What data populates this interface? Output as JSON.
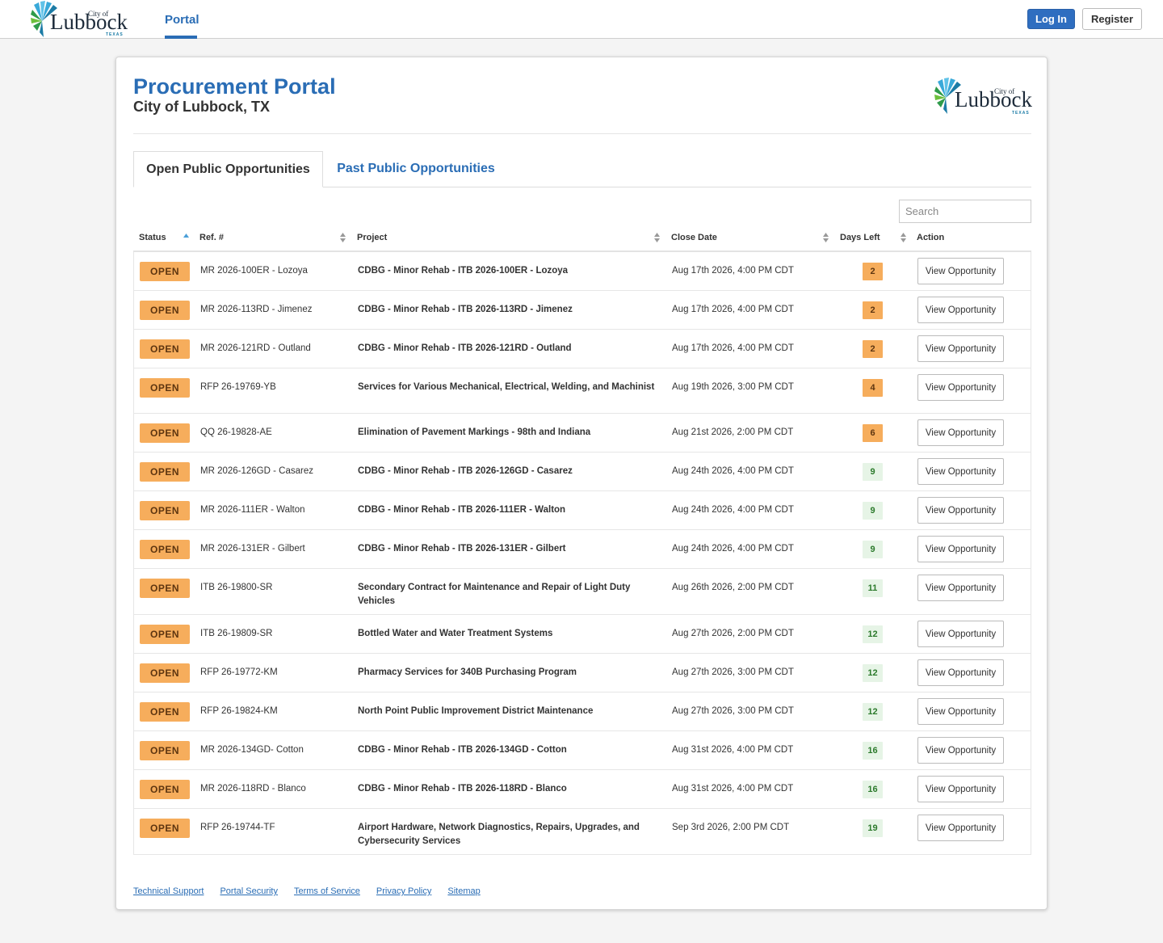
{
  "nav": {
    "logo": {
      "small": "City of",
      "word": "Lubbock",
      "state": "TEXAS"
    },
    "portal_link": "Portal",
    "login_label": "Log In",
    "register_label": "Register"
  },
  "header": {
    "title": "Procurement Portal",
    "subtitle": "City of Lubbock, TX"
  },
  "tabs": [
    {
      "label": "Open Public Opportunities",
      "active": true
    },
    {
      "label": "Past Public Opportunities",
      "active": false
    }
  ],
  "search": {
    "placeholder": "Search",
    "value": ""
  },
  "table": {
    "columns": [
      "Status",
      "Ref. #",
      "Project",
      "Close Date",
      "Days Left",
      "Action"
    ],
    "rows": [
      {
        "status": "OPEN",
        "ref": "MR 2026-100ER - Lozoya",
        "project": "CDBG - Minor Rehab - ITB 2026-100ER - Lozoya",
        "close_date": "Aug 17th 2026, 4:00 PM CDT",
        "days_left": "2",
        "action": "View Opportunity"
      },
      {
        "status": "OPEN",
        "ref": "MR 2026-113RD - Jimenez",
        "project": "CDBG - Minor Rehab - ITB 2026-113RD - Jimenez",
        "close_date": "Aug 17th 2026, 4:00 PM CDT",
        "days_left": "2",
        "action": "View Opportunity"
      },
      {
        "status": "OPEN",
        "ref": "MR 2026-121RD - Outland",
        "project": "CDBG - Minor Rehab - ITB 2026-121RD - Outland",
        "close_date": "Aug 17th 2026, 4:00 PM CDT",
        "days_left": "2",
        "action": "View Opportunity"
      },
      {
        "status": "OPEN",
        "ref": "RFP 26-19769-YB",
        "project": "Services for Various Mechanical, Electrical, Welding, and Machinist",
        "close_date": "Aug 19th 2026, 3:00 PM CDT",
        "days_left": "4",
        "action": "View Opportunity"
      },
      {
        "status": "OPEN",
        "ref": "QQ 26-19828-AE",
        "project": "Elimination of Pavement Markings - 98th and Indiana",
        "close_date": "Aug 21st 2026, 2:00 PM CDT",
        "days_left": "6",
        "action": "View Opportunity"
      },
      {
        "status": "OPEN",
        "ref": "MR 2026-126GD - Casarez",
        "project": "CDBG - Minor Rehab - ITB 2026-126GD - Casarez",
        "close_date": "Aug 24th 2026, 4:00 PM CDT",
        "days_left": "9",
        "action": "View Opportunity"
      },
      {
        "status": "OPEN",
        "ref": "MR 2026-111ER - Walton",
        "project": "CDBG - Minor Rehab - ITB 2026-111ER - Walton",
        "close_date": "Aug 24th 2026, 4:00 PM CDT",
        "days_left": "9",
        "action": "View Opportunity"
      },
      {
        "status": "OPEN",
        "ref": "MR 2026-131ER - Gilbert",
        "project": "CDBG - Minor Rehab - ITB 2026-131ER - Gilbert",
        "close_date": "Aug 24th 2026, 4:00 PM CDT",
        "days_left": "9",
        "action": "View Opportunity"
      },
      {
        "status": "OPEN",
        "ref": "ITB 26-19800-SR",
        "project": "Secondary Contract for Maintenance and Repair of Light Duty Vehicles",
        "close_date": "Aug 26th 2026, 2:00 PM CDT",
        "days_left": "11",
        "action": "View Opportunity"
      },
      {
        "status": "OPEN",
        "ref": "ITB 26-19809-SR",
        "project": "Bottled Water and Water Treatment Systems",
        "close_date": "Aug 27th 2026, 2:00 PM CDT",
        "days_left": "12",
        "action": "View Opportunity"
      },
      {
        "status": "OPEN",
        "ref": "RFP 26-19772-KM",
        "project": "Pharmacy Services for 340B Purchasing Program",
        "close_date": "Aug 27th 2026, 3:00 PM CDT",
        "days_left": "12",
        "action": "View Opportunity"
      },
      {
        "status": "OPEN",
        "ref": "RFP 26-19824-KM",
        "project": "North Point Public Improvement District Maintenance",
        "close_date": "Aug 27th 2026, 3:00 PM CDT",
        "days_left": "12",
        "action": "View Opportunity"
      },
      {
        "status": "OPEN",
        "ref": "MR 2026-134GD- Cotton",
        "project": "CDBG - Minor Rehab - ITB 2026-134GD - Cotton",
        "close_date": "Aug 31st 2026, 4:00 PM CDT",
        "days_left": "16",
        "action": "View Opportunity"
      },
      {
        "status": "OPEN",
        "ref": "MR 2026-118RD - Blanco",
        "project": "CDBG - Minor Rehab - ITB 2026-118RD - Blanco",
        "close_date": "Aug 31st 2026, 4:00 PM CDT",
        "days_left": "16",
        "action": "View Opportunity"
      },
      {
        "status": "OPEN",
        "ref": "RFP 26-19744-TF",
        "project": "Airport Hardware, Network Diagnostics, Repairs, Upgrades, and Cybersecurity Services",
        "close_date": "Sep 3rd 2026, 2:00 PM CDT",
        "days_left": "19",
        "action": "View Opportunity"
      }
    ]
  },
  "footer": {
    "links": [
      "Technical Support",
      "Portal Security",
      "Terms of Service",
      "Privacy Policy",
      "Sitemap"
    ]
  },
  "colors": {
    "brand_blue": "#2a6db5",
    "status_open": "#f6ad5c",
    "days_urgent_bg": "#f6ad5c",
    "days_ok_bg": "#e6f4e6",
    "days_ok_text": "#2c7a2c"
  },
  "icons": {
    "logo": "city-of-lubbock-sunburst-logo",
    "sort_asc": "sort-up-triangle-icon",
    "sort_both": "sort-up-down-icon"
  }
}
